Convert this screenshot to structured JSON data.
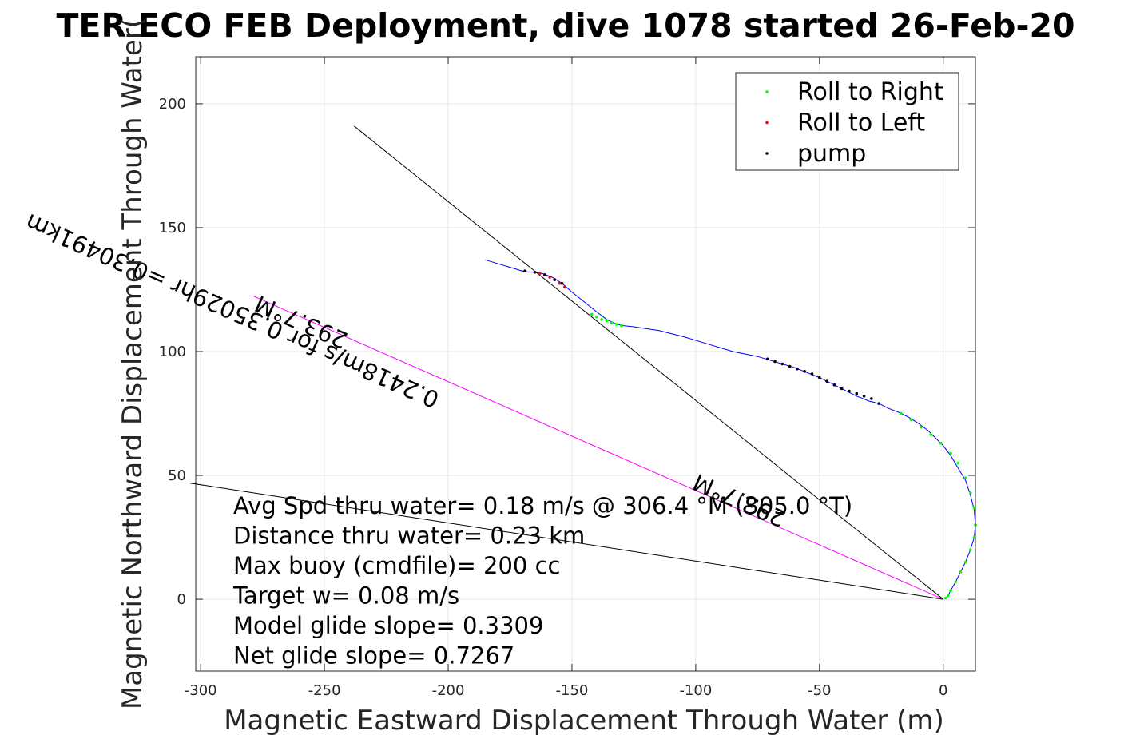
{
  "chart_data": {
    "type": "scatter",
    "title": "TER ECO FEB Deployment, dive 1078 started 26-Feb-20",
    "xlabel": "Magnetic Eastward Displacement Through Water (m)",
    "ylabel": "Magnetic Northward Displacement Through Water(",
    "xlim": [
      -302,
      13
    ],
    "ylim": [
      -29,
      219
    ],
    "xticks": [
      -300,
      -250,
      -200,
      -150,
      -100,
      -50,
      0
    ],
    "yticks": [
      0,
      50,
      100,
      150,
      200
    ],
    "grid": true,
    "legend_position": "top-right",
    "legend": [
      {
        "label": "Roll to Right",
        "color": "#00ff00"
      },
      {
        "label": "Roll to Left",
        "color": "#ff0000"
      },
      {
        "label": "pump",
        "color": "#000000"
      }
    ],
    "track": {
      "color": "#0000ff",
      "x": [
        -185,
        -175,
        -170,
        -168,
        -165,
        -162,
        -158,
        -154,
        -150,
        -145,
        -140,
        -136,
        -133,
        -130,
        -125,
        -115,
        -105,
        -95,
        -85,
        -75,
        -70,
        -65,
        -60,
        -55,
        -50,
        -45,
        -40,
        -35,
        -30,
        -26,
        -22,
        -18,
        -14,
        -10,
        -6,
        -3,
        0,
        3,
        6,
        9,
        11,
        12.5,
        13,
        12.5,
        11,
        9,
        7,
        5,
        3,
        2,
        1,
        0.5
      ],
      "y": [
        137,
        134,
        132.5,
        132.2,
        132,
        131.5,
        130,
        127.5,
        124,
        120,
        116,
        113,
        111.5,
        110.5,
        110,
        108.5,
        106,
        103,
        100,
        98,
        96.5,
        95,
        93.5,
        91.5,
        89.5,
        87,
        84.5,
        82,
        80,
        79,
        77,
        75.5,
        73.5,
        71,
        68,
        65,
        62,
        58,
        53,
        48,
        42,
        36,
        30,
        25,
        20,
        15,
        11,
        7,
        3.5,
        1.5,
        0.5,
        0
      ]
    },
    "roll_right": {
      "color": "#00ff00",
      "x": [
        -142,
        -140,
        -138,
        -136,
        -134,
        -132,
        -130,
        -17,
        -13,
        -9,
        -5,
        -1,
        3,
        6,
        9,
        11,
        12.5,
        13,
        12.5,
        11,
        9,
        7,
        5,
        3,
        2,
        1
      ],
      "y": [
        115,
        114,
        113,
        112.5,
        111.5,
        111,
        110.5,
        75,
        72.5,
        69.5,
        66.5,
        63,
        59,
        55,
        49,
        43,
        37,
        30,
        25,
        20,
        15,
        11,
        7,
        3.5,
        1.5,
        0.5
      ]
    },
    "roll_left": {
      "color": "#ff0000",
      "x": [
        -169,
        -165,
        -163,
        -161,
        -159,
        -157,
        -155,
        -153
      ],
      "y": [
        132.5,
        132,
        131.5,
        131,
        130,
        129,
        127.5,
        126
      ]
    },
    "pump": {
      "color": "#000000",
      "x": [
        -169,
        -165,
        -161,
        -157,
        -154,
        -71,
        -68,
        -65,
        -62,
        -59,
        -56,
        -53,
        -50,
        -47,
        -44,
        -41,
        -38,
        -35,
        -32,
        -29,
        -26
      ],
      "y": [
        132.5,
        132,
        131,
        129,
        127.5,
        97,
        96,
        95,
        94,
        93,
        92,
        91,
        89.5,
        88,
        86.5,
        85,
        84,
        83,
        82,
        81,
        79
      ]
    },
    "lines": [
      {
        "name": "heading-line",
        "color": "#ff00ff",
        "x1": 0,
        "y1": 0,
        "x2": -279,
        "y2": 122.5
      },
      {
        "name": "upper-black-line",
        "color": "#000000",
        "x1": 0,
        "y1": 0,
        "x2": -238,
        "y2": 191
      },
      {
        "name": "lower-black-line",
        "color": "#000000",
        "x1": 0,
        "y1": 0,
        "x2": -305,
        "y2": 47
      }
    ],
    "annotations": [
      {
        "text": "293.7°M",
        "x": -240,
        "y": 107,
        "rotation": 203.7
      },
      {
        "text": "0.2418m/s for 0.35029hr =0.30491km",
        "x": -203,
        "y": 83,
        "rotation": 203.7
      },
      {
        "text": "293.7°M",
        "x": -63,
        "y": 35,
        "rotation": 203.7
      }
    ],
    "stats": [
      "Avg Spd thru water=  0.18 m/s @ 306.4 °M (305.0 °T)",
      "Distance thru water=  0.23 km",
      "Max buoy (cmdfile)= 200 cc",
      "Target w= 0.08 m/s",
      "Model glide slope= 0.3309",
      "Net glide slope= 0.7267"
    ]
  }
}
